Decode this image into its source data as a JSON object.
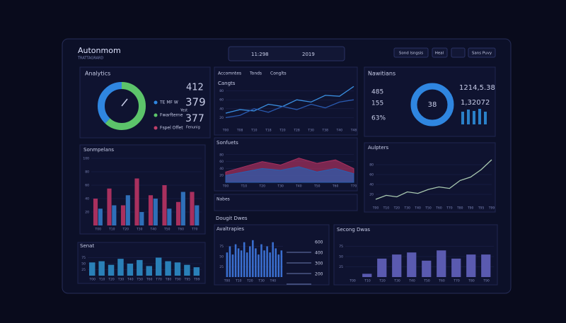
{
  "header": {
    "title": "Autonmom",
    "subtitle": "TRATTAGRARD",
    "search": [
      "11:298",
      "2019"
    ],
    "buttons": [
      "Sond lsngsis",
      "Heal",
      "Sans Puvy"
    ]
  },
  "analytics": {
    "title": "Analytics",
    "gauge": {
      "values": [
        62,
        38
      ],
      "colors": [
        "#5cc46a",
        "#2f86e0"
      ]
    },
    "legend": [
      {
        "label": "TE MF W",
        "color": "#2f86e0"
      },
      {
        "label": "Fwarfterne",
        "color": "#5cc46a"
      },
      {
        "label": "Fspel Offet",
        "color": "#c0406a"
      }
    ],
    "values": [
      "412",
      "379",
      "377"
    ],
    "notes": [
      "Yest",
      "Fenunig"
    ]
  },
  "tabs": [
    "Accomntes",
    "Tonds",
    "Conglts"
  ],
  "navigations": {
    "title": "Nawitians",
    "center": "38",
    "stats": [
      "485",
      "155",
      "63%"
    ],
    "big": [
      "1214,5.38",
      "1,32072"
    ]
  },
  "section": "Dougit Dwes",
  "strip": {
    "title": "Nabes"
  },
  "levels": [
    "600",
    "400",
    "300",
    "200"
  ],
  "charts": [
    {
      "type": "line",
      "title": "Cangts",
      "categories": [
        "T00",
        "T08",
        "T10",
        "T18",
        "T20",
        "T28",
        "T30",
        "T38",
        "T40",
        "T48"
      ],
      "series": [
        {
          "color": "#3a8fe0",
          "values": [
            30,
            38,
            35,
            50,
            45,
            60,
            55,
            70,
            68,
            90
          ]
        },
        {
          "color": "#2a5ab0",
          "values": [
            20,
            25,
            40,
            32,
            45,
            38,
            50,
            42,
            55,
            60
          ]
        }
      ],
      "ylim": [
        0,
        100
      ],
      "yticks": [
        20,
        40,
        60,
        80
      ]
    },
    {
      "type": "area",
      "title": "Sonfuets",
      "categories": [
        "T00",
        "T10",
        "T20",
        "T30",
        "T40",
        "T50",
        "T60",
        "T70"
      ],
      "series": [
        {
          "color": "#a8305e",
          "values": [
            30,
            45,
            60,
            50,
            70,
            55,
            65,
            40
          ]
        },
        {
          "color": "#2a5fb0",
          "values": [
            20,
            30,
            40,
            35,
            45,
            30,
            40,
            25
          ]
        }
      ],
      "ylim": [
        0,
        100
      ],
      "yticks": [
        20,
        40,
        60,
        80
      ]
    },
    {
      "type": "bar",
      "title": "Sonmpelans",
      "categories": [
        "T00",
        "T10",
        "T20",
        "T30",
        "T40",
        "T50",
        "T60",
        "T70"
      ],
      "series": [
        {
          "color": "#a8305e",
          "values": [
            40,
            55,
            30,
            70,
            45,
            60,
            35,
            50
          ]
        },
        {
          "color": "#2f6fb8",
          "values": [
            25,
            30,
            45,
            20,
            40,
            25,
            50,
            30
          ]
        }
      ],
      "ylim": [
        0,
        100
      ],
      "yticks": [
        20,
        40,
        60,
        80,
        100
      ]
    },
    {
      "type": "line",
      "title": "Aulpters",
      "categories": [
        "T00",
        "T10",
        "T20",
        "T30",
        "T40",
        "T50",
        "T60",
        "T70",
        "T80",
        "T90",
        "T95",
        "T99"
      ],
      "series": [
        {
          "color": "#a9c9b0",
          "values": [
            10,
            18,
            15,
            25,
            22,
            30,
            35,
            32,
            48,
            55,
            70,
            90
          ]
        }
      ],
      "ylim": [
        0,
        100
      ],
      "yticks": [
        20,
        40,
        60,
        80
      ]
    },
    {
      "type": "bar",
      "title": "Senat",
      "categories": [
        "T00",
        "T10",
        "T20",
        "T30",
        "T40",
        "T50",
        "T60",
        "T70",
        "T80",
        "T90",
        "T95",
        "T99"
      ],
      "series": [
        {
          "color": "#2a80b8",
          "values": [
            55,
            60,
            45,
            70,
            50,
            65,
            40,
            75,
            60,
            55,
            45,
            35
          ]
        }
      ],
      "ylim": [
        0,
        100
      ],
      "yticks": [
        25,
        50,
        75
      ]
    },
    {
      "type": "bar",
      "title": "Avaltrapies",
      "categories": [
        "T00",
        null,
        null,
        null,
        "T10",
        null,
        null,
        null,
        "T20",
        null,
        null,
        null,
        "T30",
        null,
        null,
        null,
        "T40",
        null,
        null,
        null
      ],
      "series": [
        {
          "color": "#3a6fd0",
          "values": [
            60,
            75,
            55,
            80,
            70,
            65,
            85,
            60,
            75,
            90,
            70,
            55,
            80,
            65,
            75,
            60,
            85,
            70,
            55,
            65
          ]
        }
      ],
      "ylim": [
        0,
        100
      ],
      "yticks": [
        25,
        50,
        75
      ]
    },
    {
      "type": "bar",
      "title": "Secong Dwas",
      "categories": [
        "T00",
        "T10",
        "T20",
        "T30",
        "T40",
        "T50",
        "T60",
        "T70",
        "T80",
        "T90"
      ],
      "series": [
        {
          "color": "#5a5ab0",
          "values": [
            0,
            8,
            45,
            55,
            60,
            40,
            65,
            45,
            55,
            55
          ]
        }
      ],
      "ylim": [
        0,
        100
      ],
      "yticks": [
        25,
        50,
        75
      ]
    }
  ]
}
